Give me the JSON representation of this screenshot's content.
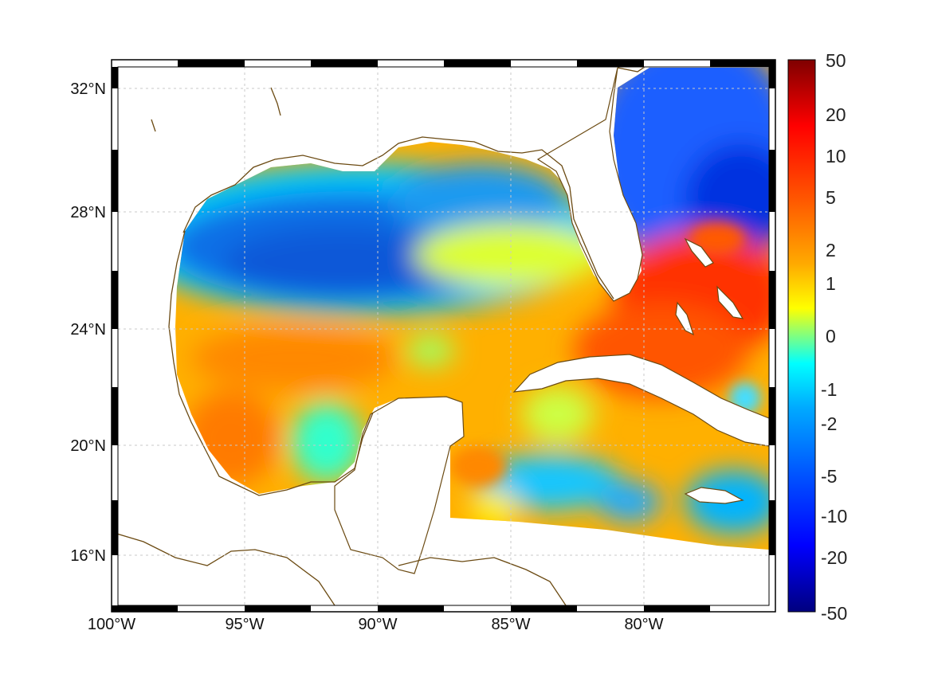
{
  "map": {
    "lon_labels": [
      "100°W",
      "95°W",
      "90°W",
      "85°W",
      "80°W"
    ],
    "lat_labels": [
      "32°N",
      "28°N",
      "24°N",
      "20°N",
      "16°N"
    ],
    "coast_color": "#6b4a12",
    "grid": true
  },
  "colorbar": {
    "labels": [
      "50",
      "20",
      "10",
      "5",
      "2",
      "1",
      "0",
      "-1",
      "-2",
      "-5",
      "-10",
      "-20",
      "-50"
    ],
    "colormap": "jet",
    "top_color": "#7f0000",
    "bottom_color": "#00007f"
  }
}
